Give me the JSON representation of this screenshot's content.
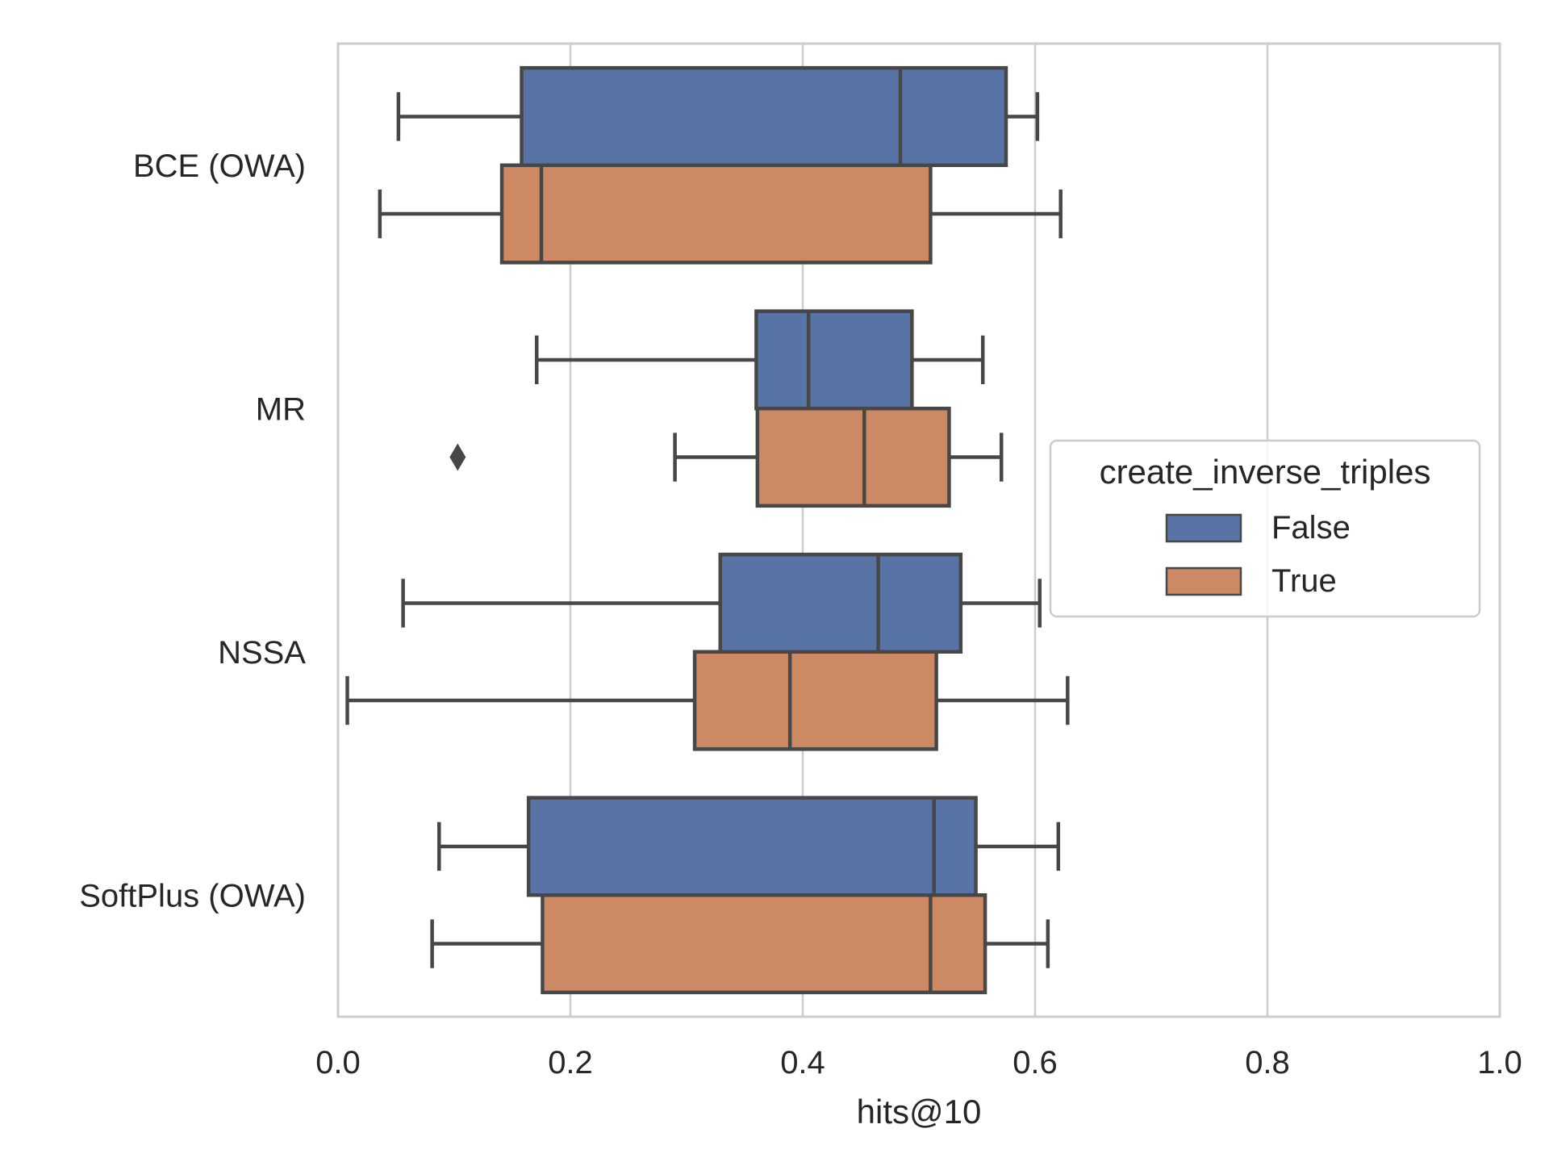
{
  "chart_data": {
    "type": "boxplot",
    "orientation": "horizontal",
    "title": "",
    "xlabel": "hits@10",
    "ylabel": "",
    "xlim": [
      0.0,
      1.0
    ],
    "xticks": [
      0.0,
      0.2,
      0.4,
      0.6,
      0.8,
      1.0
    ],
    "xtick_labels": [
      "0.0",
      "0.2",
      "0.4",
      "0.6",
      "0.8",
      "1.0"
    ],
    "grid": "vertical",
    "categories": [
      "BCE (OWA)",
      "MR",
      "NSSA",
      "SoftPlus (OWA)"
    ],
    "legend": {
      "title": "create_inverse_triples",
      "placement": "center-right",
      "entries": [
        "False",
        "True"
      ]
    },
    "series": [
      {
        "name": "False",
        "color": "#5874a6",
        "boxes": [
          {
            "whisker_low": 0.052,
            "q1": 0.158,
            "median": 0.484,
            "q3": 0.575,
            "whisker_high": 0.602,
            "outliers": []
          },
          {
            "whisker_low": 0.171,
            "q1": 0.36,
            "median": 0.405,
            "q3": 0.494,
            "whisker_high": 0.555,
            "outliers": []
          },
          {
            "whisker_low": 0.056,
            "q1": 0.329,
            "median": 0.465,
            "q3": 0.536,
            "whisker_high": 0.604,
            "outliers": []
          },
          {
            "whisker_low": 0.087,
            "q1": 0.164,
            "median": 0.513,
            "q3": 0.549,
            "whisker_high": 0.62,
            "outliers": []
          }
        ]
      },
      {
        "name": "True",
        "color": "#cc8963",
        "boxes": [
          {
            "whisker_low": 0.036,
            "q1": 0.141,
            "median": 0.175,
            "q3": 0.51,
            "whisker_high": 0.622,
            "outliers": []
          },
          {
            "whisker_low": 0.29,
            "q1": 0.361,
            "median": 0.453,
            "q3": 0.526,
            "whisker_high": 0.571,
            "outliers": [
              0.103
            ]
          },
          {
            "whisker_low": 0.008,
            "q1": 0.307,
            "median": 0.389,
            "q3": 0.515,
            "whisker_high": 0.628,
            "outliers": []
          },
          {
            "whisker_low": 0.081,
            "q1": 0.176,
            "median": 0.51,
            "q3": 0.557,
            "whisker_high": 0.611,
            "outliers": []
          }
        ]
      }
    ]
  }
}
